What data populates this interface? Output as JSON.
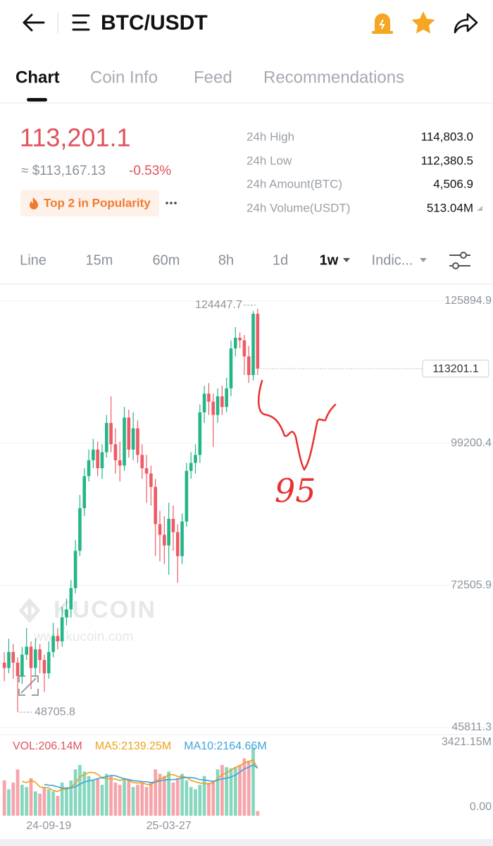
{
  "header": {
    "title": "BTC/USDT"
  },
  "tabs": [
    "Chart",
    "Coin Info",
    "Feed",
    "Recommendations"
  ],
  "ticker": {
    "price": "113,201.1",
    "approx": "≈ $113,167.13",
    "change": "-0.53%",
    "badge": "Top 2 in Popularity",
    "stats": [
      {
        "label": "24h High",
        "value": "114,803.0"
      },
      {
        "label": "24h Low",
        "value": "112,380.5"
      },
      {
        "label": "24h Amount(BTC)",
        "value": "4,506.9"
      },
      {
        "label": "24h Volume(USDT)",
        "value": "513.04M"
      }
    ]
  },
  "intervals": [
    "Line",
    "15m",
    "60m",
    "8h",
    "1d",
    "1w",
    "Indic..."
  ],
  "watermark": {
    "brand": "KUCOIN",
    "url": "www.kucoin.com"
  },
  "annotation": "95",
  "chart_data": [
    {
      "type": "candlestick",
      "categories": [
        null,
        null,
        null,
        null,
        null,
        null,
        null,
        null,
        null,
        null,
        "24-09-19",
        null,
        null,
        null,
        null,
        null,
        null,
        null,
        null,
        null,
        null,
        null,
        null,
        null,
        null,
        null,
        null,
        null,
        null,
        null,
        null,
        null,
        null,
        null,
        null,
        null,
        null,
        "25-03-27",
        null,
        null,
        null,
        null,
        null,
        null,
        null,
        null,
        null,
        null,
        null,
        null,
        null,
        null,
        null,
        null,
        null,
        null,
        null,
        null
      ],
      "open": [
        58000,
        57000,
        60000,
        58000,
        55500,
        59500,
        61000,
        57000,
        60500,
        58500,
        56000,
        60000,
        63000,
        62000,
        66500,
        68000,
        72000,
        79000,
        87000,
        93000,
        96000,
        98000,
        94500,
        97500,
        103000,
        99000,
        96000,
        95000,
        104000,
        98000,
        102000,
        97000,
        94500,
        93500,
        91000,
        84000,
        82000,
        80000,
        85000,
        82500,
        78000,
        84500,
        94000,
        95500,
        97000,
        105000,
        108500,
        107000,
        104500,
        108000,
        106000,
        109500,
        117000,
        119000,
        118500,
        115500,
        112000,
        123500
      ],
      "high": [
        60000,
        62500,
        61500,
        59000,
        61000,
        64500,
        62000,
        62500,
        61500,
        59500,
        62000,
        65500,
        64500,
        68500,
        70000,
        73500,
        81000,
        89500,
        94500,
        98000,
        100000,
        99500,
        99000,
        104500,
        108000,
        102000,
        99500,
        106000,
        105500,
        105000,
        103500,
        99000,
        97000,
        95000,
        92500,
        86500,
        85500,
        88000,
        87500,
        84000,
        86000,
        95500,
        97500,
        99000,
        106500,
        110000,
        110500,
        108500,
        109500,
        110000,
        111500,
        118500,
        121000,
        120000,
        119500,
        117500,
        124000,
        124447.7
      ],
      "low": [
        54500,
        56000,
        55000,
        48705.8,
        54000,
        58500,
        53000,
        55500,
        56000,
        52500,
        55000,
        59000,
        60500,
        61000,
        65000,
        66500,
        71000,
        78000,
        85500,
        92000,
        94500,
        93000,
        92500,
        96500,
        97500,
        93500,
        92000,
        94000,
        96500,
        96000,
        95500,
        92500,
        88000,
        87500,
        78000,
        77000,
        76500,
        74500,
        79000,
        73000,
        76500,
        83500,
        92500,
        93500,
        95500,
        103000,
        104500,
        98500,
        103000,
        104500,
        105000,
        108000,
        115500,
        117000,
        112000,
        110500,
        111000,
        112000
      ],
      "close": [
        57000,
        60000,
        58000,
        55500,
        59500,
        61000,
        57000,
        60500,
        58500,
        56000,
        60000,
        63000,
        62000,
        66500,
        68000,
        72000,
        79000,
        87000,
        93000,
        96000,
        98000,
        94500,
        97500,
        103000,
        99000,
        96000,
        95000,
        104000,
        98000,
        102000,
        97000,
        94500,
        93500,
        91000,
        84000,
        82000,
        80000,
        85000,
        82500,
        78000,
        84500,
        94000,
        95500,
        97000,
        105000,
        108500,
        107000,
        104500,
        108000,
        106000,
        109500,
        117000,
        119000,
        118500,
        115500,
        112000,
        123500,
        113201.1
      ],
      "ylim": [
        44753,
        128805
      ],
      "yticks": [
        45811.3,
        72505.9,
        99200.4,
        125894.9
      ],
      "up_color": "#22b688",
      "down_color": "#ee5a65",
      "grid": true
    },
    {
      "type": "volume",
      "ylim": [
        0,
        3421.15
      ],
      "yticks": [
        {
          "value": 0,
          "label": "0.00"
        },
        {
          "value": 3421.15,
          "label": "3421.15M"
        }
      ],
      "series": [
        {
          "name": "VOL:206.14M",
          "color": "#e0525c",
          "values": [
            1600,
            1200,
            1500,
            2100,
            1400,
            1300,
            1700,
            1100,
            1000,
            1300,
            1200,
            1100,
            900,
            1500,
            1300,
            1600,
            2100,
            2300,
            2000,
            1800,
            1600,
            1700,
            1400,
            1900,
            1800,
            1500,
            1400,
            1700,
            1600,
            1300,
            1400,
            1500,
            1300,
            1500,
            2100,
            1900,
            1800,
            2000,
            1500,
            1700,
            1900,
            1600,
            1300,
            1200,
            1400,
            1800,
            1500,
            1600,
            2100,
            2300,
            2200,
            2150,
            2200,
            2300,
            2600,
            2500,
            3090,
            206.14
          ]
        },
        {
          "name": "MA5:2139.25M",
          "color": "#eba21b",
          "values": [
            null,
            null,
            null,
            null,
            1560,
            1500,
            1600,
            1520,
            1300,
            1280,
            1260,
            1140,
            1100,
            1200,
            1200,
            1280,
            1480,
            1760,
            1860,
            1960,
            1960,
            1880,
            1700,
            1680,
            1680,
            1660,
            1600,
            1660,
            1600,
            1500,
            1480,
            1500,
            1420,
            1400,
            1560,
            1660,
            1720,
            1860,
            1860,
            1780,
            1780,
            1740,
            1600,
            1540,
            1480,
            1460,
            1440,
            1500,
            1680,
            1860,
            1940,
            2070,
            2190,
            2270,
            2390,
            2450,
            2538,
            2139.25
          ]
        },
        {
          "name": "MA10:2164.66M",
          "color": "#3fa3d8",
          "values": [
            null,
            null,
            null,
            null,
            null,
            null,
            null,
            null,
            null,
            1420,
            1380,
            1370,
            1310,
            1250,
            1240,
            1270,
            1310,
            1430,
            1530,
            1580,
            1620,
            1680,
            1730,
            1770,
            1820,
            1810,
            1740,
            1680,
            1640,
            1590,
            1570,
            1550,
            1540,
            1500,
            1530,
            1570,
            1610,
            1640,
            1630,
            1670,
            1720,
            1730,
            1730,
            1700,
            1630,
            1620,
            1590,
            1550,
            1610,
            1670,
            1700,
            1755,
            1845,
            1975,
            2125,
            2195,
            2304,
            2164.66
          ]
        }
      ]
    }
  ]
}
